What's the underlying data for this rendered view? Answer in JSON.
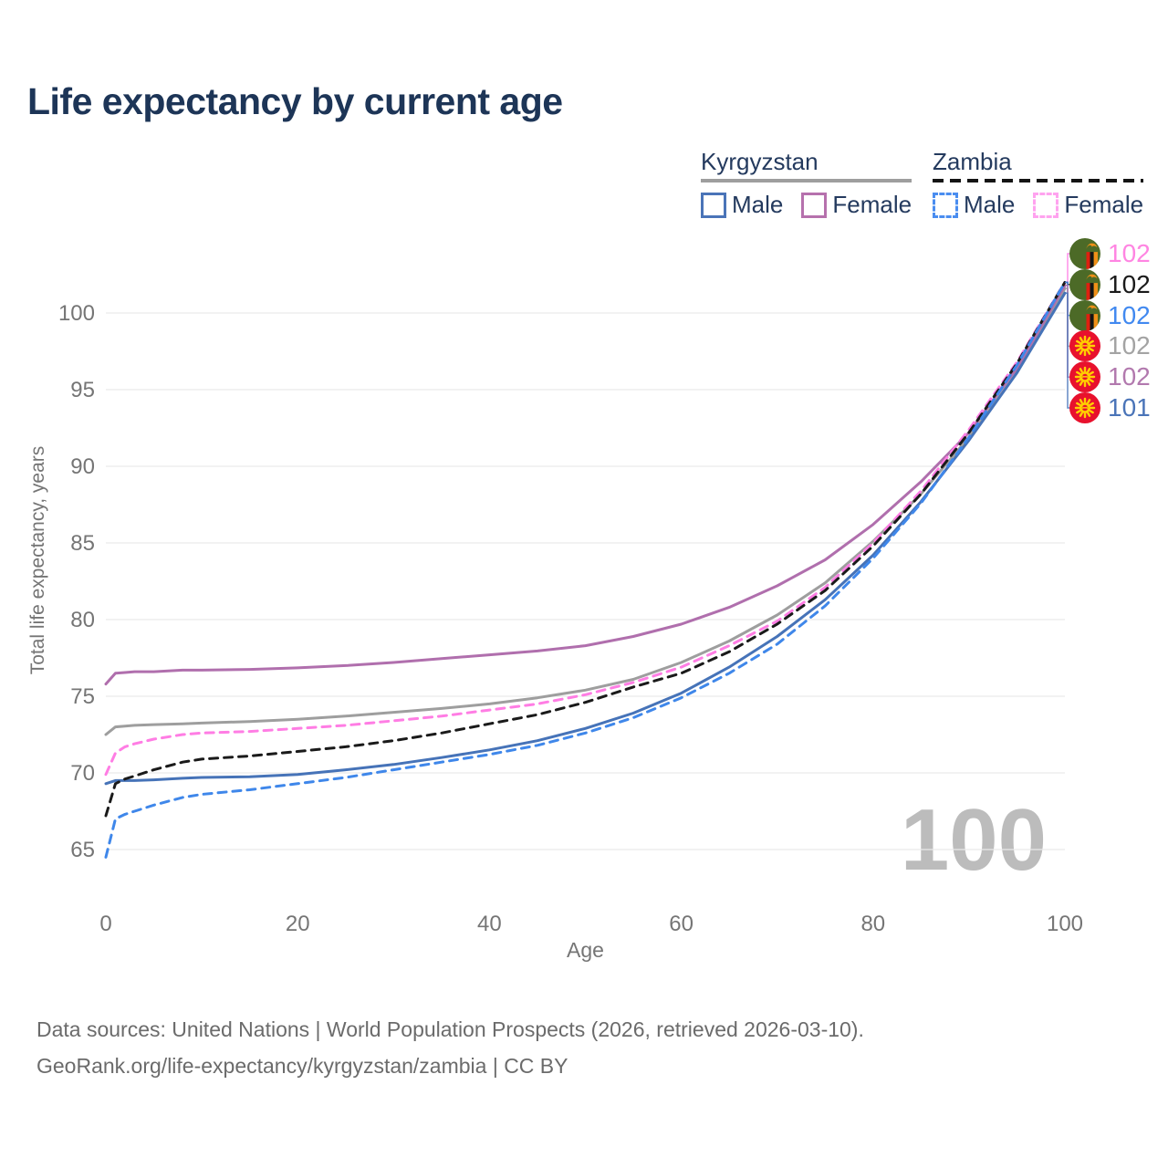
{
  "title": "Life expectancy by current age",
  "legend": {
    "groups": [
      {
        "name": "Kyrgyzstan",
        "line_style": "solid",
        "line_color": "#9e9e9e",
        "items": [
          {
            "label": "Male",
            "swatch_color": "#4a74b8",
            "swatch_style": "solid"
          },
          {
            "label": "Female",
            "swatch_color": "#b671ad",
            "swatch_style": "solid"
          }
        ]
      },
      {
        "name": "Zambia",
        "line_style": "dashed",
        "line_color": "#141414",
        "items": [
          {
            "label": "Male",
            "swatch_color": "#4a8df0",
            "swatch_style": "dashed"
          },
          {
            "label": "Female",
            "swatch_color": "#ffa3ef",
            "swatch_style": "dashed"
          }
        ]
      }
    ]
  },
  "chart_data": {
    "type": "line",
    "title": "Life expectancy by current age",
    "xlabel": "Age",
    "ylabel": "Total life expectancy, years",
    "x_ticks": [
      0,
      20,
      40,
      60,
      80,
      100
    ],
    "y_ticks": [
      65,
      70,
      75,
      80,
      85,
      90,
      95,
      100
    ],
    "xlim": [
      0,
      100
    ],
    "ylim": [
      63.5,
      103
    ],
    "grid": "horizontal",
    "legend_position": "top-right",
    "x": [
      0,
      1,
      2,
      3,
      5,
      8,
      10,
      15,
      20,
      25,
      30,
      35,
      40,
      45,
      50,
      55,
      60,
      65,
      70,
      75,
      80,
      85,
      90,
      95,
      100
    ],
    "series": [
      {
        "name": "Kyrgyzstan Both sexes",
        "country": "Kyrgyzstan",
        "sex": "Both",
        "color": "#9e9e9e",
        "dashed": false,
        "values": [
          72.5,
          73.0,
          73.05,
          73.1,
          73.15,
          73.2,
          73.25,
          73.35,
          73.5,
          73.7,
          73.95,
          74.2,
          74.5,
          74.9,
          75.4,
          76.1,
          77.2,
          78.6,
          80.3,
          82.4,
          85.1,
          88.2,
          91.9,
          96.1,
          101.6
        ]
      },
      {
        "name": "Kyrgyzstan Female",
        "country": "Kyrgyzstan",
        "sex": "Female",
        "color": "#b06fad",
        "dashed": false,
        "values": [
          75.8,
          76.5,
          76.55,
          76.6,
          76.6,
          76.7,
          76.7,
          76.75,
          76.85,
          77.0,
          77.2,
          77.45,
          77.7,
          77.95,
          78.3,
          78.9,
          79.7,
          80.8,
          82.2,
          83.9,
          86.2,
          89.0,
          92.2,
          96.4,
          101.8
        ]
      },
      {
        "name": "Kyrgyzstan Male",
        "country": "Kyrgyzstan",
        "sex": "Male",
        "color": "#4673b8",
        "dashed": false,
        "values": [
          69.3,
          69.5,
          69.5,
          69.5,
          69.55,
          69.65,
          69.7,
          69.75,
          69.9,
          70.2,
          70.55,
          71.0,
          71.5,
          72.1,
          72.9,
          73.9,
          75.2,
          76.9,
          78.9,
          81.3,
          84.2,
          87.7,
          91.7,
          96.1,
          101.3
        ]
      },
      {
        "name": "Zambia Female",
        "country": "Zambia",
        "sex": "Female",
        "color": "#ff7de4",
        "dashed": true,
        "values": [
          69.9,
          71.3,
          71.7,
          71.9,
          72.2,
          72.5,
          72.6,
          72.7,
          72.9,
          73.1,
          73.4,
          73.7,
          74.1,
          74.5,
          75.1,
          75.9,
          76.9,
          78.3,
          79.9,
          82.1,
          85.0,
          88.4,
          92.4,
          96.8,
          102.0
        ]
      },
      {
        "name": "Zambia Both sexes",
        "country": "Zambia",
        "sex": "Both",
        "color": "#1a1a1a",
        "dashed": true,
        "values": [
          67.2,
          69.3,
          69.6,
          69.8,
          70.2,
          70.7,
          70.9,
          71.1,
          71.4,
          71.7,
          72.1,
          72.6,
          73.2,
          73.8,
          74.6,
          75.6,
          76.5,
          77.9,
          79.7,
          81.9,
          84.8,
          88.2,
          92.2,
          96.7,
          102.0
        ]
      },
      {
        "name": "Zambia Male",
        "country": "Zambia",
        "sex": "Male",
        "color": "#3f87ea",
        "dashed": true,
        "values": [
          64.5,
          67.0,
          67.3,
          67.5,
          67.9,
          68.4,
          68.6,
          68.9,
          69.3,
          69.7,
          70.2,
          70.7,
          71.2,
          71.8,
          72.6,
          73.6,
          74.9,
          76.5,
          78.4,
          80.9,
          84.0,
          87.6,
          91.9,
          96.6,
          102.0
        ]
      }
    ]
  },
  "end_labels": [
    {
      "value": "102",
      "flag": "zambia",
      "text_color": "#ff85e2",
      "series": "Zambia Female"
    },
    {
      "value": "102",
      "flag": "zambia",
      "text_color": "#1a1a1a",
      "series": "Zambia Both sexes"
    },
    {
      "value": "102",
      "flag": "zambia",
      "text_color": "#4189f0",
      "series": "Zambia Male"
    },
    {
      "value": "102",
      "flag": "kyrgyzstan",
      "text_color": "#a3a3a3",
      "series": "Kyrgyzstan Both sexes"
    },
    {
      "value": "102",
      "flag": "kyrgyzstan",
      "text_color": "#b279ae",
      "series": "Kyrgyzstan Female"
    },
    {
      "value": "101",
      "flag": "kyrgyzstan",
      "text_color": "#4a74b8",
      "series": "Kyrgyzstan Male"
    }
  ],
  "watermark": "100",
  "footer": {
    "line1": "Data sources: United Nations | World Population Prospects (2026, retrieved 2026-03-10).",
    "line2": "GeoRank.org/life-expectancy/kyrgyzstan/zambia | CC BY"
  }
}
